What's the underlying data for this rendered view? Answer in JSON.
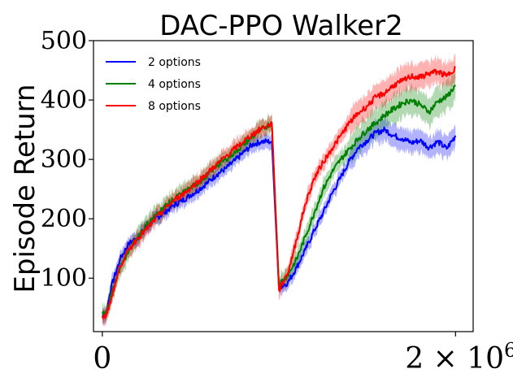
{
  "chart_data": {
    "type": "line",
    "title": "DAC-PPO Walker2",
    "ylabel": "Episode Return",
    "xlabel": "",
    "xlim": [
      -0.05,
      2.1
    ],
    "ylim": [
      10,
      500
    ],
    "yticks": [
      100,
      200,
      300,
      400,
      500
    ],
    "xticks": [
      {
        "value": 0,
        "label": "0"
      },
      {
        "value": 2,
        "label": "2 × 10",
        "sup": "6"
      }
    ],
    "legend_position": "top-left",
    "x_unit": 1000000,
    "series": [
      {
        "name": "2 options",
        "color": "#0000ff",
        "band": 14,
        "points": [
          [
            0,
            38
          ],
          [
            0.02,
            37
          ],
          [
            0.05,
            85
          ],
          [
            0.1,
            132
          ],
          [
            0.15,
            158
          ],
          [
            0.2,
            168
          ],
          [
            0.25,
            186
          ],
          [
            0.3,
            200
          ],
          [
            0.35,
            210
          ],
          [
            0.4,
            222
          ],
          [
            0.45,
            230
          ],
          [
            0.5,
            240
          ],
          [
            0.55,
            250
          ],
          [
            0.6,
            262
          ],
          [
            0.65,
            275
          ],
          [
            0.7,
            285
          ],
          [
            0.75,
            298
          ],
          [
            0.8,
            312
          ],
          [
            0.85,
            325
          ],
          [
            0.9,
            330
          ],
          [
            0.96,
            330
          ],
          [
            1.0,
            85
          ],
          [
            1.05,
            92
          ],
          [
            1.1,
            118
          ],
          [
            1.15,
            148
          ],
          [
            1.2,
            180
          ],
          [
            1.25,
            210
          ],
          [
            1.3,
            242
          ],
          [
            1.35,
            270
          ],
          [
            1.4,
            298
          ],
          [
            1.45,
            320
          ],
          [
            1.5,
            332
          ],
          [
            1.55,
            345
          ],
          [
            1.6,
            350
          ],
          [
            1.65,
            340
          ],
          [
            1.7,
            335
          ],
          [
            1.75,
            328
          ],
          [
            1.8,
            332
          ],
          [
            1.85,
            320
          ],
          [
            1.9,
            330
          ],
          [
            1.95,
            318
          ],
          [
            2.0,
            340
          ]
        ]
      },
      {
        "name": "4 options",
        "color": "#008000",
        "band": 18,
        "points": [
          [
            0,
            40
          ],
          [
            0.02,
            38
          ],
          [
            0.05,
            72
          ],
          [
            0.1,
            118
          ],
          [
            0.15,
            145
          ],
          [
            0.2,
            170
          ],
          [
            0.25,
            190
          ],
          [
            0.3,
            205
          ],
          [
            0.35,
            220
          ],
          [
            0.4,
            232
          ],
          [
            0.45,
            242
          ],
          [
            0.5,
            252
          ],
          [
            0.55,
            262
          ],
          [
            0.6,
            275
          ],
          [
            0.65,
            290
          ],
          [
            0.7,
            300
          ],
          [
            0.75,
            312
          ],
          [
            0.8,
            325
          ],
          [
            0.85,
            338
          ],
          [
            0.9,
            350
          ],
          [
            0.96,
            362
          ],
          [
            1.0,
            90
          ],
          [
            1.05,
            105
          ],
          [
            1.1,
            132
          ],
          [
            1.15,
            170
          ],
          [
            1.2,
            210
          ],
          [
            1.25,
            250
          ],
          [
            1.3,
            278
          ],
          [
            1.35,
            300
          ],
          [
            1.4,
            318
          ],
          [
            1.45,
            335
          ],
          [
            1.5,
            350
          ],
          [
            1.55,
            362
          ],
          [
            1.6,
            375
          ],
          [
            1.65,
            385
          ],
          [
            1.7,
            395
          ],
          [
            1.75,
            400
          ],
          [
            1.8,
            392
          ],
          [
            1.85,
            380
          ],
          [
            1.9,
            398
          ],
          [
            1.95,
            405
          ],
          [
            2.0,
            425
          ]
        ]
      },
      {
        "name": "8 options",
        "color": "#ff0000",
        "band": 16,
        "points": [
          [
            0,
            36
          ],
          [
            0.02,
            35
          ],
          [
            0.05,
            65
          ],
          [
            0.1,
            120
          ],
          [
            0.15,
            148
          ],
          [
            0.2,
            168
          ],
          [
            0.25,
            182
          ],
          [
            0.3,
            200
          ],
          [
            0.35,
            215
          ],
          [
            0.4,
            230
          ],
          [
            0.45,
            240
          ],
          [
            0.5,
            252
          ],
          [
            0.55,
            265
          ],
          [
            0.6,
            278
          ],
          [
            0.65,
            292
          ],
          [
            0.7,
            305
          ],
          [
            0.75,
            318
          ],
          [
            0.8,
            330
          ],
          [
            0.85,
            342
          ],
          [
            0.9,
            352
          ],
          [
            0.96,
            360
          ],
          [
            1.0,
            80
          ],
          [
            1.05,
            108
          ],
          [
            1.1,
            165
          ],
          [
            1.15,
            225
          ],
          [
            1.2,
            268
          ],
          [
            1.25,
            295
          ],
          [
            1.3,
            318
          ],
          [
            1.35,
            340
          ],
          [
            1.4,
            362
          ],
          [
            1.45,
            378
          ],
          [
            1.5,
            390
          ],
          [
            1.55,
            405
          ],
          [
            1.6,
            412
          ],
          [
            1.65,
            425
          ],
          [
            1.7,
            432
          ],
          [
            1.75,
            440
          ],
          [
            1.8,
            438
          ],
          [
            1.85,
            445
          ],
          [
            1.9,
            448
          ],
          [
            1.95,
            440
          ],
          [
            2.0,
            455
          ]
        ]
      }
    ]
  }
}
